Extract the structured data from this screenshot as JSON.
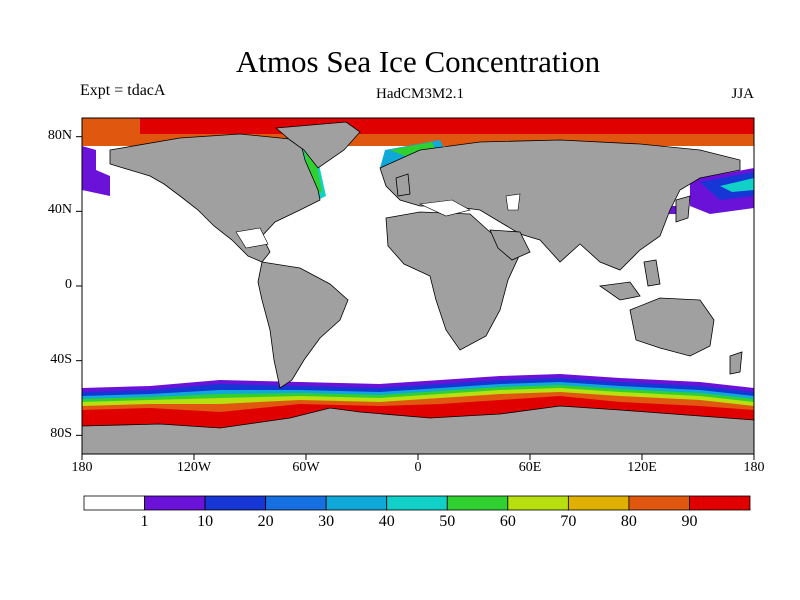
{
  "title": "Atmos Sea Ice Concentration",
  "subtitle_left": "Expt = tdacA",
  "subtitle_center": "HadCM3M2.1",
  "subtitle_right": "JJA",
  "map": {
    "projection": "cylindrical equidistant",
    "lon_range": [
      -180,
      180
    ],
    "lat_range": [
      -90,
      90
    ],
    "lat_tick_labels": [
      {
        "lat": 80,
        "label": "80N"
      },
      {
        "lat": 40,
        "label": "40N"
      },
      {
        "lat": 0,
        "label": "0"
      },
      {
        "lat": -40,
        "label": "40S"
      },
      {
        "lat": -80,
        "label": "80S"
      }
    ],
    "lon_tick_labels": [
      {
        "lon": -180,
        "label": "180"
      },
      {
        "lon": -120,
        "label": "120W"
      },
      {
        "lon": -60,
        "label": "60W"
      },
      {
        "lon": 0,
        "label": "0"
      },
      {
        "lon": 60,
        "label": "60E"
      },
      {
        "lon": 120,
        "label": "120E"
      },
      {
        "lon": 180,
        "label": "180"
      }
    ],
    "land_color": "#a0a0a0",
    "ocean_no_ice_color": "#ffffff"
  },
  "colorbar": {
    "levels": [
      1,
      10,
      20,
      30,
      40,
      50,
      60,
      70,
      80,
      90
    ],
    "colors": [
      "#ffffff",
      "#6a12d8",
      "#1636d6",
      "#1670e0",
      "#10a8d8",
      "#10d0c8",
      "#30d030",
      "#b8e010",
      "#e0b000",
      "#e05810",
      "#e00000"
    ]
  },
  "colors": {
    "land": "#a0a0a0",
    "ice_max": "#e00000"
  }
}
